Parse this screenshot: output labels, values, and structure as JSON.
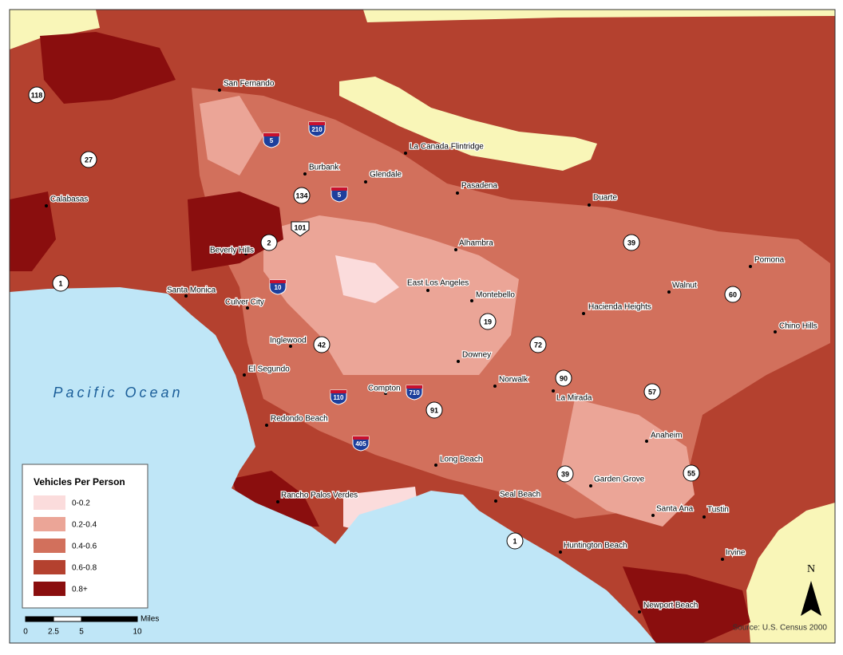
{
  "map": {
    "ocean_label": "Pacific Ocean",
    "source": "Source: U.S. Census 2000",
    "north": "N"
  },
  "legend": {
    "title": "Vehicles Per Person",
    "items": [
      {
        "label": "0-0.2",
        "color": "#fbdcdc"
      },
      {
        "label": "0.2-0.4",
        "color": "#eba597"
      },
      {
        "label": "0.4-0.6",
        "color": "#d2705c"
      },
      {
        "label": "0.6-0.8",
        "color": "#b4412f"
      },
      {
        "label": "0.8+",
        "color": "#8a0e0e"
      }
    ]
  },
  "scale_bar": {
    "unit": "Miles",
    "ticks": [
      0,
      2.5,
      5,
      10
    ]
  },
  "cities": [
    {
      "name": "San Fernando"
    },
    {
      "name": "La Canada Flintridge"
    },
    {
      "name": "Burbank"
    },
    {
      "name": "Glendale"
    },
    {
      "name": "Pasadena"
    },
    {
      "name": "Calabasas"
    },
    {
      "name": "Duarte"
    },
    {
      "name": "Beverly Hills"
    },
    {
      "name": "Alhambra"
    },
    {
      "name": "Pomona"
    },
    {
      "name": "Santa Monica"
    },
    {
      "name": "East Los Angeles"
    },
    {
      "name": "Walnut"
    },
    {
      "name": "Culver City"
    },
    {
      "name": "Montebello"
    },
    {
      "name": "Hacienda Heights"
    },
    {
      "name": "Chino Hills"
    },
    {
      "name": "Inglewood"
    },
    {
      "name": "Downey"
    },
    {
      "name": "El Segundo"
    },
    {
      "name": "Norwalk"
    },
    {
      "name": "Compton"
    },
    {
      "name": "La Mirada"
    },
    {
      "name": "Redondo Beach"
    },
    {
      "name": "Anaheim"
    },
    {
      "name": "Long Beach"
    },
    {
      "name": "Garden Grove"
    },
    {
      "name": "Rancho Palos Verdes"
    },
    {
      "name": "Seal Beach"
    },
    {
      "name": "Santa Ana"
    },
    {
      "name": "Tustin"
    },
    {
      "name": "Huntington Beach"
    },
    {
      "name": "Irvine"
    },
    {
      "name": "Newport Beach"
    }
  ],
  "state_routes": [
    "118",
    "27",
    "134",
    "2",
    "39",
    "1",
    "60",
    "19",
    "42",
    "72",
    "90",
    "57",
    "91",
    "39",
    "55",
    "1"
  ],
  "us_routes": [
    "101"
  ],
  "interstates": [
    "5",
    "210",
    "5",
    "10",
    "110",
    "710",
    "405"
  ]
}
